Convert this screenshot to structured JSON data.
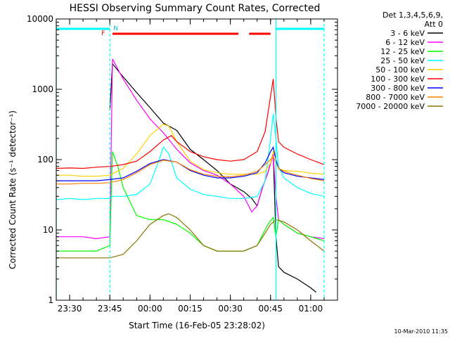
{
  "chart_data": {
    "type": "line",
    "title": "HESSI Observing Summary Count Rates, Corrected",
    "xlabel": "Start Time (16-Feb-05 23:28:02)",
    "ylabel": "Corrected Count Rate (s⁻¹ detector⁻¹)",
    "y_scale": "log",
    "xlim": [
      "23:25",
      "01:10"
    ],
    "ylim": [
      1,
      10000
    ],
    "x_tick_labels": [
      "23:30",
      "23:45",
      "00:00",
      "00:15",
      "00:30",
      "00:45",
      "01:00"
    ],
    "y_tick_labels": [
      "1",
      "10",
      "100",
      "1000",
      "10000"
    ],
    "legend_header": [
      "Det 1,3,4,5,6,9,",
      "Att 0"
    ],
    "legend_position": "right",
    "timestamp": "10-Mar-2010 11:35",
    "annotations": {
      "flag_F": "F",
      "flag_N": "N"
    },
    "vertical_lines": [
      "23:25",
      "23:45",
      "00:47",
      "01:05"
    ],
    "series": [
      {
        "name": "3 - 6 keV",
        "color": "#000000",
        "x": [
          "23:45",
          "23:46",
          "23:50",
          "23:55",
          "00:00",
          "00:05",
          "00:10",
          "00:15",
          "00:20",
          "00:25",
          "00:30",
          "00:35",
          "00:38",
          "00:40",
          "00:42",
          "00:44",
          "00:46",
          "00:47",
          "00:48",
          "00:50",
          "00:55",
          "01:00",
          "01:02"
        ],
        "y": [
          500,
          2300,
          1500,
          900,
          550,
          330,
          260,
          140,
          100,
          70,
          45,
          35,
          28,
          22,
          40,
          65,
          120,
          8,
          3,
          2.5,
          2,
          1.5,
          1.3
        ]
      },
      {
        "name": "6 - 12 keV",
        "color": "#ff00ff",
        "x": [
          "23:25",
          "23:30",
          "23:35",
          "23:40",
          "23:45",
          "23:46",
          "23:50",
          "23:55",
          "00:00",
          "00:05",
          "00:10",
          "00:15",
          "00:20",
          "00:25",
          "00:30",
          "00:35",
          "00:38",
          "00:40",
          "00:42",
          "00:44",
          "00:46",
          "00:47",
          "00:48",
          "00:50",
          "00:55",
          "01:00",
          "01:05"
        ],
        "y": [
          8,
          8,
          8,
          7.5,
          8,
          2700,
          1400,
          700,
          380,
          240,
          140,
          90,
          70,
          60,
          45,
          30,
          18,
          22,
          40,
          65,
          120,
          30,
          14,
          12,
          9,
          8,
          7.5
        ]
      },
      {
        "name": "12 - 25 keV",
        "color": "#00ff00",
        "x": [
          "23:25",
          "23:30",
          "23:35",
          "23:40",
          "23:45",
          "23:46",
          "23:48",
          "23:50",
          "23:55",
          "00:00",
          "00:05",
          "00:10",
          "00:15",
          "00:20",
          "00:25",
          "00:30",
          "00:35",
          "00:40",
          "00:44",
          "00:46",
          "00:47",
          "00:48",
          "00:50",
          "00:55",
          "01:00",
          "01:05"
        ],
        "y": [
          5,
          5,
          5,
          5,
          6,
          130,
          80,
          40,
          16,
          14,
          14,
          12,
          9,
          6,
          5,
          5,
          5,
          6,
          12,
          15,
          8,
          14,
          12,
          9,
          8,
          7
        ]
      },
      {
        "name": "25 - 50 keV",
        "color": "#00ffff",
        "x": [
          "23:25",
          "23:30",
          "23:35",
          "23:40",
          "23:45",
          "23:46",
          "23:50",
          "23:55",
          "00:00",
          "00:03",
          "00:05",
          "00:07",
          "00:10",
          "00:15",
          "00:20",
          "00:25",
          "00:30",
          "00:35",
          "00:40",
          "00:43",
          "00:45",
          "00:46",
          "00:47",
          "00:48",
          "00:50",
          "00:55",
          "01:00",
          "01:05"
        ],
        "y": [
          27,
          28,
          27,
          28,
          28,
          30,
          30,
          32,
          45,
          90,
          150,
          120,
          55,
          38,
          32,
          30,
          28,
          28,
          30,
          50,
          200,
          450,
          200,
          80,
          55,
          40,
          33,
          30
        ]
      },
      {
        "name": "50 - 100 keV",
        "color": "#ffd000",
        "x": [
          "23:25",
          "23:30",
          "23:35",
          "23:40",
          "23:45",
          "23:50",
          "23:55",
          "00:00",
          "00:05",
          "00:07",
          "00:10",
          "00:15",
          "00:20",
          "00:25",
          "00:30",
          "00:35",
          "00:40",
          "00:43",
          "00:45",
          "00:46",
          "00:47",
          "00:48",
          "00:50",
          "00:55",
          "01:00",
          "01:05"
        ],
        "y": [
          60,
          60,
          58,
          58,
          60,
          75,
          120,
          220,
          320,
          300,
          180,
          95,
          72,
          65,
          62,
          62,
          62,
          68,
          90,
          130,
          100,
          75,
          70,
          68,
          64,
          62
        ]
      },
      {
        "name": "100 - 300 keV",
        "color": "#ff0000",
        "x": [
          "23:25",
          "23:30",
          "23:35",
          "23:40",
          "23:45",
          "23:50",
          "23:55",
          "00:00",
          "00:05",
          "00:08",
          "00:10",
          "00:15",
          "00:20",
          "00:25",
          "00:30",
          "00:35",
          "00:40",
          "00:43",
          "00:45",
          "00:46",
          "00:47",
          "00:48",
          "00:50",
          "00:55",
          "01:00",
          "01:05"
        ],
        "y": [
          75,
          76,
          75,
          78,
          80,
          85,
          95,
          130,
          190,
          220,
          180,
          130,
          110,
          100,
          95,
          100,
          130,
          250,
          800,
          1400,
          400,
          180,
          150,
          120,
          100,
          85
        ]
      },
      {
        "name": "300 - 800 keV",
        "color": "#0000ff",
        "x": [
          "23:25",
          "23:30",
          "23:35",
          "23:40",
          "23:45",
          "23:50",
          "23:55",
          "00:00",
          "00:05",
          "00:10",
          "00:15",
          "00:20",
          "00:25",
          "00:30",
          "00:35",
          "00:40",
          "00:43",
          "00:45",
          "00:46",
          "00:47",
          "00:48",
          "00:50",
          "00:55",
          "01:00",
          "01:05"
        ],
        "y": [
          50,
          50,
          50,
          50,
          52,
          55,
          68,
          88,
          100,
          92,
          70,
          60,
          55,
          55,
          58,
          65,
          90,
          130,
          150,
          100,
          75,
          65,
          58,
          55,
          52
        ]
      },
      {
        "name": "800 - 7000 keV",
        "color": "#ff8000",
        "x": [
          "23:25",
          "23:30",
          "23:35",
          "23:40",
          "23:45",
          "23:50",
          "23:55",
          "00:00",
          "00:05",
          "00:10",
          "00:15",
          "00:20",
          "00:25",
          "00:30",
          "00:35",
          "00:40",
          "00:43",
          "00:45",
          "00:46",
          "00:47",
          "00:48",
          "00:50",
          "00:55",
          "01:00",
          "01:05"
        ],
        "y": [
          45,
          45,
          46,
          46,
          47,
          52,
          65,
          85,
          98,
          92,
          72,
          62,
          58,
          57,
          60,
          68,
          85,
          100,
          110,
          90,
          75,
          68,
          60,
          54,
          50
        ]
      },
      {
        "name": "7000 - 20000 keV",
        "color": "#8b7500",
        "x": [
          "23:25",
          "23:30",
          "23:35",
          "23:40",
          "23:45",
          "23:50",
          "23:55",
          "00:00",
          "00:05",
          "00:07",
          "00:10",
          "00:15",
          "00:20",
          "00:25",
          "00:30",
          "00:35",
          "00:40",
          "00:43",
          "00:45",
          "00:47",
          "00:50",
          "00:55",
          "01:00",
          "01:05"
        ],
        "y": [
          4,
          4,
          4,
          4,
          4,
          4.5,
          7,
          12,
          16,
          17,
          15,
          10,
          6,
          5,
          5,
          5,
          6,
          9,
          12,
          14,
          13,
          10,
          7,
          5
        ]
      }
    ],
    "attenuator_bars": [
      {
        "color": "#00ffff",
        "x": [
          "23:25",
          "23:45"
        ]
      },
      {
        "color": "#00ffff",
        "x": [
          "00:47",
          "01:05"
        ]
      }
    ],
    "flag_bars": [
      {
        "color": "#ff0000",
        "x": [
          "23:46",
          "00:33"
        ]
      },
      {
        "color": "#ff0000",
        "x": [
          "00:37",
          "00:45"
        ]
      }
    ]
  }
}
